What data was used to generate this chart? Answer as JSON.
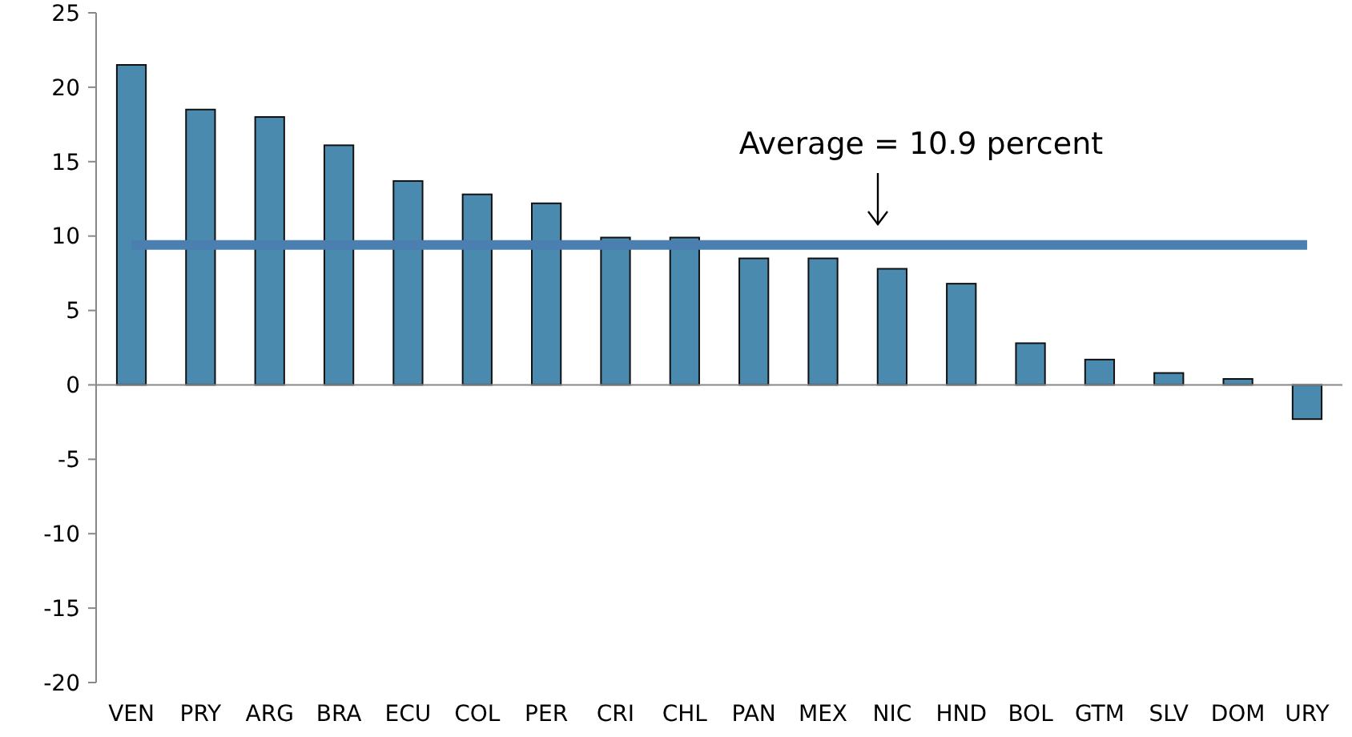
{
  "chart_data": {
    "type": "bar",
    "categories": [
      "VEN",
      "PRY",
      "ARG",
      "BRA",
      "ECU",
      "COL",
      "PER",
      "CRI",
      "CHL",
      "PAN",
      "MEX",
      "NIC",
      "HND",
      "BOL",
      "GTM",
      "SLV",
      "DOM",
      "URY"
    ],
    "values": [
      21.5,
      18.5,
      18.0,
      16.1,
      13.7,
      12.8,
      12.2,
      9.9,
      9.9,
      8.5,
      8.5,
      7.8,
      6.8,
      2.8,
      1.7,
      0.8,
      0.4,
      -2.3
    ],
    "color": "#4a8aaf",
    "ylim": [
      -20,
      25
    ],
    "yticks": [
      -20,
      -15,
      -10,
      -5,
      0,
      5,
      10,
      15,
      20,
      25
    ],
    "annotations": [
      "Average = 10.9 percent"
    ],
    "ref_lines": [
      {
        "axis": "y",
        "value": 9.4,
        "color": "#4a7fb0"
      }
    ]
  }
}
